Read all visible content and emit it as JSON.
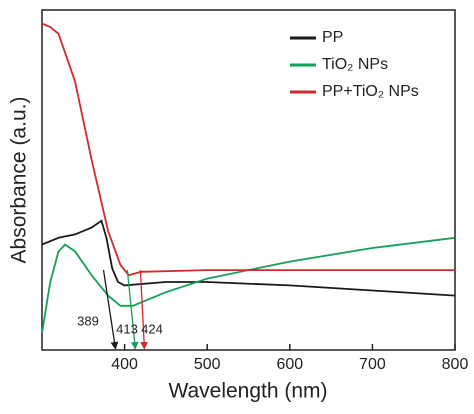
{
  "chart_data": {
    "type": "line",
    "x_label": "Wavelength (nm)",
    "y_label": "Absorbance (a.u.)",
    "xlim": [
      300,
      800
    ],
    "xticks": [
      400,
      500,
      600,
      700,
      800
    ],
    "ylim": [
      0,
      1
    ],
    "legend": "upper right",
    "series": [
      {
        "name": "PP",
        "color": "#1a1a1a",
        "x": [
          300,
          320,
          340,
          360,
          372,
          378,
          385,
          392,
          400,
          450,
          500,
          600,
          700,
          800
        ],
        "values": [
          0.31,
          0.33,
          0.34,
          0.36,
          0.38,
          0.33,
          0.24,
          0.2,
          0.19,
          0.2,
          0.2,
          0.19,
          0.175,
          0.16
        ]
      },
      {
        "name": "TiO₂ NPs",
        "color": "#16a05a",
        "x": [
          300,
          310,
          320,
          328,
          340,
          360,
          380,
          395,
          410,
          450,
          500,
          600,
          700,
          800
        ],
        "values": [
          0.05,
          0.2,
          0.29,
          0.31,
          0.29,
          0.22,
          0.16,
          0.13,
          0.13,
          0.17,
          0.21,
          0.26,
          0.3,
          0.33
        ]
      },
      {
        "name": "PP+TiO₂ NPs",
        "color": "#d42a2a",
        "x": [
          300,
          310,
          320,
          340,
          360,
          380,
          395,
          405,
          420,
          500,
          600,
          700,
          800
        ],
        "values": [
          0.96,
          0.95,
          0.93,
          0.79,
          0.56,
          0.35,
          0.25,
          0.22,
          0.23,
          0.235,
          0.235,
          0.235,
          0.235
        ]
      }
    ],
    "annotations": [
      {
        "value": 389,
        "color": "#1a1a1a"
      },
      {
        "value": 413,
        "color": "#16a05a"
      },
      {
        "value": 424,
        "color": "#d42a2a"
      }
    ]
  }
}
